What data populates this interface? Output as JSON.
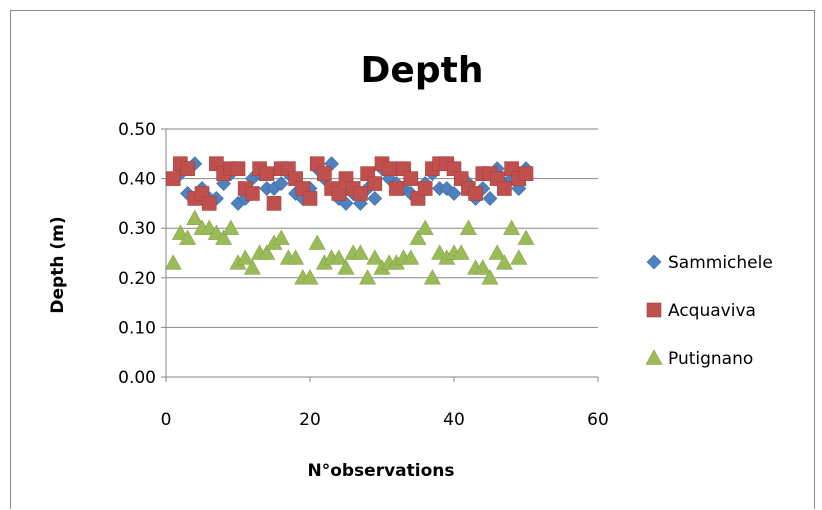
{
  "chart_data": {
    "type": "scatter",
    "title": "Depth",
    "xlabel": "N°observations",
    "ylabel": "Depth (m)",
    "xlim": [
      0,
      60
    ],
    "ylim": [
      0.0,
      0.5
    ],
    "xticks": [
      0,
      20,
      40,
      60
    ],
    "xtick_labels": [
      "0",
      "20",
      "40",
      "60"
    ],
    "yticks": [
      0.0,
      0.1,
      0.2,
      0.3,
      0.4,
      0.5
    ],
    "ytick_labels": [
      "0.00",
      "0.10",
      "0.20",
      "0.30",
      "0.40",
      "0.50"
    ],
    "grid": "horizontal",
    "legend": "right",
    "series": [
      {
        "name": "Sammichele",
        "marker": "diamond",
        "color": "#4f81bd",
        "x": [
          1,
          2,
          3,
          4,
          5,
          6,
          7,
          8,
          9,
          10,
          11,
          12,
          13,
          14,
          15,
          16,
          17,
          18,
          19,
          20,
          21,
          22,
          23,
          24,
          25,
          26,
          27,
          28,
          29,
          30,
          31,
          32,
          33,
          34,
          35,
          36,
          37,
          38,
          39,
          40,
          41,
          42,
          43,
          44,
          45,
          46,
          47,
          48,
          49,
          50
        ],
        "y": [
          0.4,
          0.41,
          0.37,
          0.43,
          0.38,
          0.36,
          0.36,
          0.39,
          0.41,
          0.35,
          0.36,
          0.4,
          0.41,
          0.38,
          0.38,
          0.39,
          0.41,
          0.37,
          0.36,
          0.38,
          0.42,
          0.4,
          0.43,
          0.36,
          0.35,
          0.37,
          0.35,
          0.38,
          0.36,
          0.42,
          0.4,
          0.39,
          0.38,
          0.37,
          0.36,
          0.39,
          0.41,
          0.38,
          0.38,
          0.37,
          0.4,
          0.39,
          0.36,
          0.38,
          0.36,
          0.42,
          0.39,
          0.4,
          0.38,
          0.42
        ]
      },
      {
        "name": "Acquaviva",
        "marker": "square",
        "color": "#c0504d",
        "x": [
          1,
          2,
          3,
          4,
          5,
          6,
          7,
          8,
          9,
          10,
          11,
          12,
          13,
          14,
          15,
          16,
          17,
          18,
          19,
          20,
          21,
          22,
          23,
          24,
          25,
          26,
          27,
          28,
          29,
          30,
          31,
          32,
          33,
          34,
          35,
          36,
          37,
          38,
          39,
          40,
          41,
          42,
          43,
          44,
          45,
          46,
          47,
          48,
          49,
          50
        ],
        "y": [
          0.4,
          0.43,
          0.42,
          0.36,
          0.37,
          0.35,
          0.43,
          0.41,
          0.42,
          0.42,
          0.38,
          0.37,
          0.42,
          0.41,
          0.35,
          0.42,
          0.42,
          0.4,
          0.38,
          0.36,
          0.43,
          0.41,
          0.38,
          0.37,
          0.4,
          0.38,
          0.37,
          0.41,
          0.39,
          0.43,
          0.42,
          0.38,
          0.42,
          0.4,
          0.36,
          0.38,
          0.42,
          0.43,
          0.43,
          0.42,
          0.4,
          0.38,
          0.37,
          0.41,
          0.41,
          0.4,
          0.38,
          0.42,
          0.4,
          0.41
        ]
      },
      {
        "name": "Putignano",
        "marker": "triangle",
        "color": "#9bbb59",
        "x": [
          1,
          2,
          3,
          4,
          5,
          6,
          7,
          8,
          9,
          10,
          11,
          12,
          13,
          14,
          15,
          16,
          17,
          18,
          19,
          20,
          21,
          22,
          23,
          24,
          25,
          26,
          27,
          28,
          29,
          30,
          31,
          32,
          33,
          34,
          35,
          36,
          37,
          38,
          39,
          40,
          41,
          42,
          43,
          44,
          45,
          46,
          47,
          48,
          49,
          50
        ],
        "y": [
          0.23,
          0.29,
          0.28,
          0.32,
          0.3,
          0.3,
          0.29,
          0.28,
          0.3,
          0.23,
          0.24,
          0.22,
          0.25,
          0.25,
          0.27,
          0.28,
          0.24,
          0.24,
          0.2,
          0.2,
          0.27,
          0.23,
          0.24,
          0.24,
          0.22,
          0.25,
          0.25,
          0.2,
          0.24,
          0.22,
          0.23,
          0.23,
          0.24,
          0.24,
          0.28,
          0.3,
          0.2,
          0.25,
          0.24,
          0.25,
          0.25,
          0.3,
          0.22,
          0.22,
          0.2,
          0.25,
          0.23,
          0.3,
          0.24,
          0.28
        ]
      }
    ]
  }
}
